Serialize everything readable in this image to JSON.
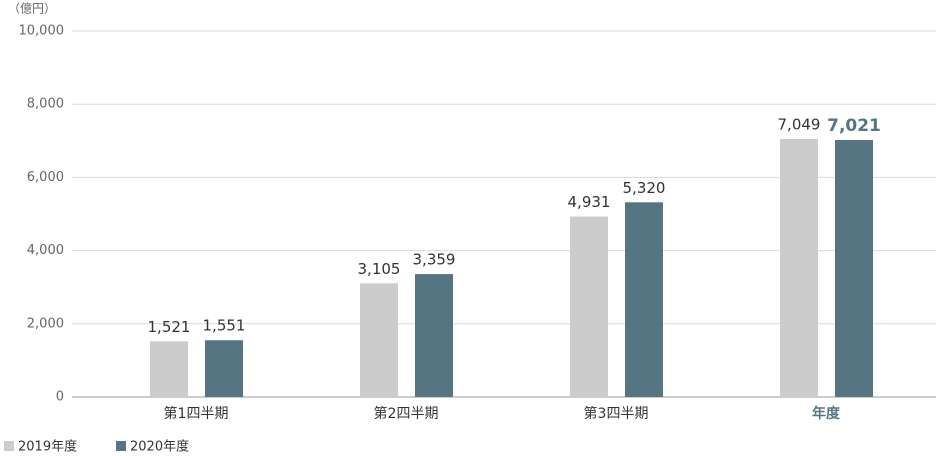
{
  "chart_data": {
    "type": "bar",
    "y_label": "（億円）",
    "categories": [
      "第1四半期",
      "第2四半期",
      "第3四半期",
      "年度"
    ],
    "series": [
      {
        "name": "2019年度",
        "color": "#cccccc",
        "values": [
          1521,
          3105,
          4931,
          7049
        ],
        "value_labels": [
          "1,521",
          "3,105",
          "4,931",
          "7,049"
        ]
      },
      {
        "name": "2020年度",
        "color": "#567583",
        "values": [
          1551,
          3359,
          5320,
          7021
        ],
        "value_labels": [
          "1,551",
          "3,359",
          "5,320",
          "7,021"
        ]
      }
    ],
    "ylim": [
      0,
      10000
    ],
    "yticks": [
      0,
      {
        "value": 2000,
        "label": "2,000"
      },
      {
        "value": 4000,
        "label": "4,000"
      },
      {
        "value": 6000,
        "label": "6,000"
      },
      {
        "value": 8000,
        "label": "8,000"
      },
      {
        "value": 10000,
        "label": "10,000"
      }
    ],
    "grid": true
  }
}
